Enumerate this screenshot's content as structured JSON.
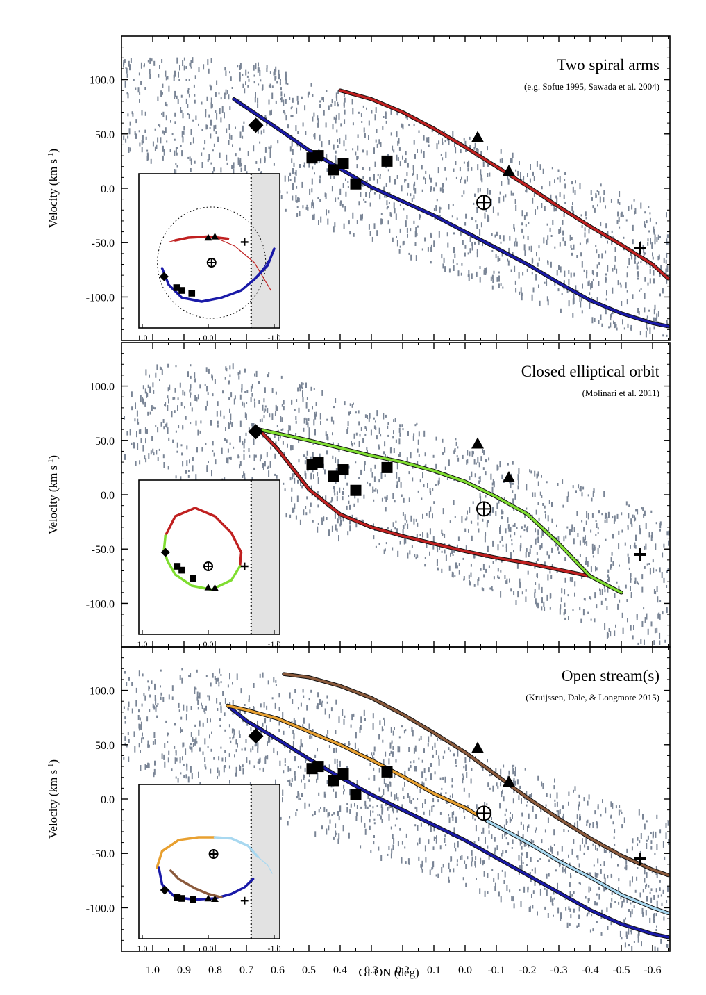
{
  "figure": {
    "xlabel": "GLON (deg)",
    "ylabel": "Velocity (km s⁻¹)",
    "ylabel_base": "Velocity (km s",
    "ylabel_sup": "-1",
    "ylabel_close": ")"
  },
  "chart_data": [
    {
      "type": "line",
      "title": "Two spiral arms",
      "subtitle": "(e.g. Sofue 1995, Sawada et al. 2004)",
      "xlim": [
        1.12,
        -0.65
      ],
      "ylim": [
        -140,
        140
      ],
      "xticks": [
        "1.0",
        "0.9",
        "0.8",
        "0.7",
        "0.6",
        "0.5",
        "0.4",
        "0.3",
        "0.2",
        "0.1",
        "0.0",
        "-0.1",
        "-0.2",
        "-0.3",
        "-0.4",
        "-0.5",
        "-0.6"
      ],
      "yticks": [
        "100.0",
        "50.0",
        "0.0",
        "-50.0",
        "-100.0"
      ],
      "series": [
        {
          "color": "#1a1aa8",
          "x": [
            0.74,
            0.6,
            0.5,
            0.4,
            0.3,
            0.2,
            0.1,
            0.0,
            -0.1,
            -0.2,
            -0.3,
            -0.4,
            -0.5,
            -0.6,
            -0.65
          ],
          "y": [
            82,
            55,
            35,
            18,
            1,
            -12,
            -25,
            -40,
            -55,
            -70,
            -87,
            -103,
            -115,
            -124,
            -127
          ]
        },
        {
          "color": "#c02020",
          "x": [
            0.4,
            0.3,
            0.2,
            0.1,
            0.0,
            -0.1,
            -0.2,
            -0.3,
            -0.4,
            -0.5,
            -0.6,
            -0.65
          ],
          "y": [
            90,
            82,
            70,
            55,
            38,
            20,
            2,
            -17,
            -35,
            -52,
            -70,
            -83
          ]
        }
      ],
      "markers": [
        {
          "shape": "diamond",
          "x": 0.67,
          "y": 58
        },
        {
          "shape": "square",
          "x": 0.49,
          "y": 28
        },
        {
          "shape": "square",
          "x": 0.47,
          "y": 30
        },
        {
          "shape": "square",
          "x": 0.42,
          "y": 17
        },
        {
          "shape": "square",
          "x": 0.39,
          "y": 23
        },
        {
          "shape": "square",
          "x": 0.35,
          "y": 4
        },
        {
          "shape": "square",
          "x": 0.25,
          "y": 25
        },
        {
          "shape": "triangle",
          "x": -0.04,
          "y": 47
        },
        {
          "shape": "triangle",
          "x": -0.14,
          "y": 16
        },
        {
          "shape": "earth",
          "x": -0.06,
          "y": -13
        },
        {
          "shape": "cross",
          "x": -0.56,
          "y": -55
        }
      ],
      "inset": {
        "xticks": [
          "1.0",
          "0.0",
          "-1.0"
        ],
        "tracks": [
          {
            "color": "#c02020",
            "x": [
              -0.95,
              -0.7,
              -0.4,
              -0.1,
              0.2,
              0.45,
              0.6
            ],
            "y": [
              -0.85,
              -0.35,
              -0.05,
              0.1,
              0.12,
              0.07,
              0.02
            ],
            "width": 1.2
          },
          {
            "color": "#c02020",
            "x": [
              -0.3,
              0.0,
              0.3,
              0.5
            ],
            "y": [
              0.08,
              0.12,
              0.1,
              0.05
            ],
            "width": 3.5
          },
          {
            "color": "#1a1aa8",
            "x": [
              0.7,
              0.6,
              0.4,
              0.1,
              -0.2,
              -0.5,
              -0.7,
              -0.9,
              -1.0
            ],
            "y": [
              -0.45,
              -0.75,
              -0.98,
              -1.05,
              -0.98,
              -0.85,
              -0.65,
              -0.4,
              -0.1
            ],
            "width": 3.5
          },
          {
            "color": "#1a1aa8",
            "x": [
              -0.7,
              -0.85,
              -1.0
            ],
            "y": [
              -0.65,
              -0.42,
              -0.15
            ],
            "width": 1.2
          }
        ],
        "circle": true,
        "markers": [
          {
            "shape": "diamond",
            "x": 0.67,
            "y": -0.6
          },
          {
            "shape": "square",
            "x": 0.48,
            "y": -0.8
          },
          {
            "shape": "square",
            "x": 0.4,
            "y": -0.85
          },
          {
            "shape": "square",
            "x": 0.25,
            "y": -0.9
          },
          {
            "shape": "triangle",
            "x": 0.0,
            "y": 0.1
          },
          {
            "shape": "triangle",
            "x": -0.1,
            "y": 0.12
          },
          {
            "shape": "cross",
            "x": -0.55,
            "y": 0.02
          },
          {
            "shape": "earth",
            "x": -0.05,
            "y": -0.35
          }
        ]
      }
    },
    {
      "type": "line",
      "title": "Closed elliptical orbit",
      "subtitle": "(Molinari et al. 2011)",
      "xlim": [
        1.12,
        -0.65
      ],
      "ylim": [
        -140,
        140
      ],
      "xticks": [
        "1.0",
        "0.9",
        "0.8",
        "0.7",
        "0.6",
        "0.5",
        "0.4",
        "0.3",
        "0.2",
        "0.1",
        "0.0",
        "-0.1",
        "-0.2",
        "-0.3",
        "-0.4",
        "-0.5",
        "-0.6"
      ],
      "yticks": [
        "100.0",
        "50.0",
        "0.0",
        "-50.0",
        "-100.0"
      ],
      "series": [
        {
          "color": "#c02020",
          "x": [
            0.66,
            0.6,
            0.5,
            0.4,
            0.3,
            0.2,
            0.1,
            0.0,
            -0.1,
            -0.2,
            -0.3,
            -0.4,
            -0.5
          ],
          "y": [
            60,
            42,
            5,
            -18,
            -30,
            -38,
            -45,
            -52,
            -58,
            -63,
            -69,
            -75,
            -90
          ]
        },
        {
          "color": "#7fdd30",
          "x": [
            0.66,
            0.5,
            0.4,
            0.3,
            0.2,
            0.1,
            0.0,
            -0.1,
            -0.2,
            -0.3,
            -0.4,
            -0.5
          ],
          "y": [
            60,
            50,
            43,
            36,
            30,
            22,
            12,
            -2,
            -18,
            -45,
            -75,
            -90
          ]
        }
      ],
      "markers": [
        {
          "shape": "diamond",
          "x": 0.67,
          "y": 58
        },
        {
          "shape": "square",
          "x": 0.49,
          "y": 28
        },
        {
          "shape": "square",
          "x": 0.47,
          "y": 30
        },
        {
          "shape": "square",
          "x": 0.42,
          "y": 17
        },
        {
          "shape": "square",
          "x": 0.39,
          "y": 23
        },
        {
          "shape": "square",
          "x": 0.35,
          "y": 4
        },
        {
          "shape": "square",
          "x": 0.25,
          "y": 25
        },
        {
          "shape": "triangle",
          "x": -0.04,
          "y": 47
        },
        {
          "shape": "triangle",
          "x": -0.14,
          "y": 16
        },
        {
          "shape": "earth",
          "x": -0.06,
          "y": -13
        },
        {
          "shape": "cross",
          "x": -0.56,
          "y": -55
        }
      ],
      "inset": {
        "xticks": [
          "1.0",
          "0.0",
          "-1.0"
        ],
        "tracks": [
          {
            "color": "#c02020",
            "x": [
              0.65,
              0.5,
              0.2,
              -0.1,
              -0.35,
              -0.5,
              -0.48
            ],
            "y": [
              0.25,
              0.6,
              0.75,
              0.6,
              0.3,
              -0.05,
              -0.3
            ],
            "width": 3.5
          },
          {
            "color": "#7fdd30",
            "x": [
              -0.48,
              -0.35,
              -0.05,
              0.25,
              0.5,
              0.62,
              0.67,
              0.65
            ],
            "y": [
              -0.3,
              -0.55,
              -0.72,
              -0.65,
              -0.45,
              -0.2,
              0.0,
              0.25
            ],
            "width": 3.5
          }
        ],
        "circle": false,
        "markers": [
          {
            "shape": "diamond",
            "x": 0.65,
            "y": -0.05
          },
          {
            "shape": "square",
            "x": 0.47,
            "y": -0.3
          },
          {
            "shape": "square",
            "x": 0.4,
            "y": -0.37
          },
          {
            "shape": "square",
            "x": 0.23,
            "y": -0.52
          },
          {
            "shape": "triangle",
            "x": 0.0,
            "y": -0.68
          },
          {
            "shape": "triangle",
            "x": -0.1,
            "y": -0.69
          },
          {
            "shape": "cross",
            "x": -0.55,
            "y": -0.3
          },
          {
            "shape": "earth",
            "x": 0.0,
            "y": -0.3
          }
        ]
      }
    },
    {
      "type": "line",
      "title": "Open stream(s)",
      "subtitle": "(Kruijssen, Dale, & Longmore 2015)",
      "xlim": [
        1.12,
        -0.65
      ],
      "ylim": [
        -140,
        140
      ],
      "xticks": [
        "1.0",
        "0.9",
        "0.8",
        "0.7",
        "0.6",
        "0.5",
        "0.4",
        "0.3",
        "0.2",
        "0.1",
        "0.0",
        "-0.1",
        "-0.2",
        "-0.3",
        "-0.4",
        "-0.5",
        "-0.6"
      ],
      "yticks": [
        "100.0",
        "50.0",
        "0.0",
        "-50.0",
        "-100.0"
      ],
      "series": [
        {
          "color": "#1a1aa8",
          "x": [
            0.76,
            0.7,
            0.6,
            0.5,
            0.4,
            0.3,
            0.2,
            0.1,
            0.0,
            -0.1,
            -0.2,
            -0.3,
            -0.4,
            -0.5,
            -0.6,
            -0.65
          ],
          "y": [
            86,
            72,
            55,
            37,
            20,
            4,
            -10,
            -24,
            -38,
            -54,
            -70,
            -86,
            -102,
            -115,
            -124,
            -127
          ]
        },
        {
          "color": "#e8a030",
          "x": [
            0.76,
            0.7,
            0.6,
            0.5,
            0.4,
            0.3,
            0.2,
            0.1,
            0.0,
            -0.07
          ],
          "y": [
            86,
            82,
            74,
            62,
            50,
            36,
            21,
            5,
            -8,
            -20
          ]
        },
        {
          "color": "#a8d8f0",
          "x": [
            -0.07,
            -0.2,
            -0.3,
            -0.4,
            -0.5,
            -0.6,
            -0.65
          ],
          "y": [
            -20,
            -40,
            -57,
            -72,
            -88,
            -100,
            -105
          ]
        },
        {
          "color": "#8b5a3c",
          "x": [
            0.58,
            0.5,
            0.4,
            0.3,
            0.2,
            0.1,
            0.0,
            -0.1,
            -0.2,
            -0.3,
            -0.4,
            -0.5,
            -0.6,
            -0.65
          ],
          "y": [
            115,
            112,
            104,
            93,
            78,
            61,
            43,
            22,
            1,
            -18,
            -36,
            -52,
            -65,
            -70
          ]
        }
      ],
      "markers": [
        {
          "shape": "diamond",
          "x": 0.67,
          "y": 58
        },
        {
          "shape": "square",
          "x": 0.49,
          "y": 28
        },
        {
          "shape": "square",
          "x": 0.47,
          "y": 30
        },
        {
          "shape": "square",
          "x": 0.42,
          "y": 17
        },
        {
          "shape": "square",
          "x": 0.39,
          "y": 23
        },
        {
          "shape": "square",
          "x": 0.35,
          "y": 4
        },
        {
          "shape": "square",
          "x": 0.25,
          "y": 25
        },
        {
          "shape": "triangle",
          "x": -0.04,
          "y": 47
        },
        {
          "shape": "triangle",
          "x": -0.14,
          "y": 16
        },
        {
          "shape": "earth",
          "x": -0.06,
          "y": -13
        },
        {
          "shape": "cross",
          "x": -0.56,
          "y": -55
        }
      ],
      "inset": {
        "xticks": [
          "1.0",
          "0.0",
          "-1.0"
        ],
        "tracks": [
          {
            "color": "#e8a030",
            "x": [
              0.78,
              0.7,
              0.45,
              0.15,
              -0.1
            ],
            "y": [
              -0.25,
              0.05,
              0.25,
              0.3,
              0.3
            ],
            "width": 3.5
          },
          {
            "color": "#a8d8f0",
            "x": [
              -0.1,
              -0.35,
              -0.6,
              -0.75
            ],
            "y": [
              0.3,
              0.28,
              0.15,
              -0.05
            ],
            "width": 3.5
          },
          {
            "color": "#a8d8f0",
            "x": [
              -0.75,
              -0.9,
              -0.97
            ],
            "y": [
              -0.05,
              -0.2,
              -0.35
            ],
            "width": 1.2
          },
          {
            "color": "#1a1aa8",
            "x": [
              0.75,
              0.7,
              0.5,
              0.2,
              -0.1,
              -0.35,
              -0.55,
              -0.68
            ],
            "y": [
              -0.25,
              -0.55,
              -0.78,
              -0.82,
              -0.8,
              -0.72,
              -0.6,
              -0.45
            ],
            "width": 3.5
          },
          {
            "color": "#8b5a3c",
            "x": [
              0.57,
              0.45,
              0.2,
              0.0,
              -0.2
            ],
            "y": [
              -0.3,
              -0.45,
              -0.62,
              -0.72,
              -0.78
            ],
            "width": 3.5
          }
        ],
        "circle": false,
        "markers": [
          {
            "shape": "diamond",
            "x": 0.66,
            "y": -0.65
          },
          {
            "shape": "square",
            "x": 0.47,
            "y": -0.78
          },
          {
            "shape": "square",
            "x": 0.4,
            "y": -0.8
          },
          {
            "shape": "square",
            "x": 0.23,
            "y": -0.82
          },
          {
            "shape": "triangle",
            "x": 0.0,
            "y": -0.8
          },
          {
            "shape": "triangle",
            "x": -0.1,
            "y": -0.81
          },
          {
            "shape": "cross",
            "x": -0.55,
            "y": -0.84
          },
          {
            "shape": "earth",
            "x": -0.08,
            "y": 0.0
          }
        ]
      }
    }
  ],
  "colors": {
    "cloud": "#7a8596",
    "inset_shade": "#e2e2e2"
  }
}
